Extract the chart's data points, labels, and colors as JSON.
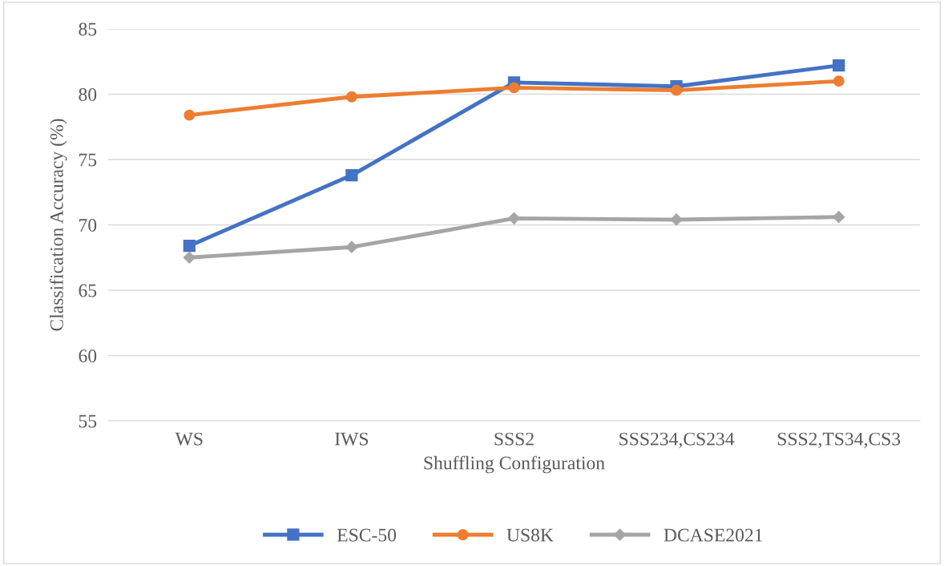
{
  "chart_data": {
    "type": "line",
    "xlabel": "Shuffling Configuration",
    "ylabel": "Classification Accuracy (%)",
    "categories": [
      "WS",
      "IWS",
      "SSS2",
      "SSS234,CS234",
      "SSS2,TS34,CS3"
    ],
    "series": [
      {
        "name": "ESC-50",
        "color": "#4472c4",
        "marker": "square",
        "values": [
          68.4,
          73.8,
          80.9,
          80.6,
          82.2
        ]
      },
      {
        "name": "US8K",
        "color": "#ed7d31",
        "marker": "circle",
        "values": [
          78.4,
          79.8,
          80.5,
          80.3,
          81.0
        ]
      },
      {
        "name": "DCASE2021",
        "color": "#a5a5a5",
        "marker": "diamond",
        "values": [
          67.5,
          68.3,
          70.5,
          70.4,
          70.6
        ]
      }
    ],
    "ylim": [
      55,
      85
    ],
    "yticks": [
      55,
      60,
      65,
      70,
      75,
      80,
      85
    ],
    "grid": "y",
    "legend": "bottom",
    "line_style": "solid"
  }
}
